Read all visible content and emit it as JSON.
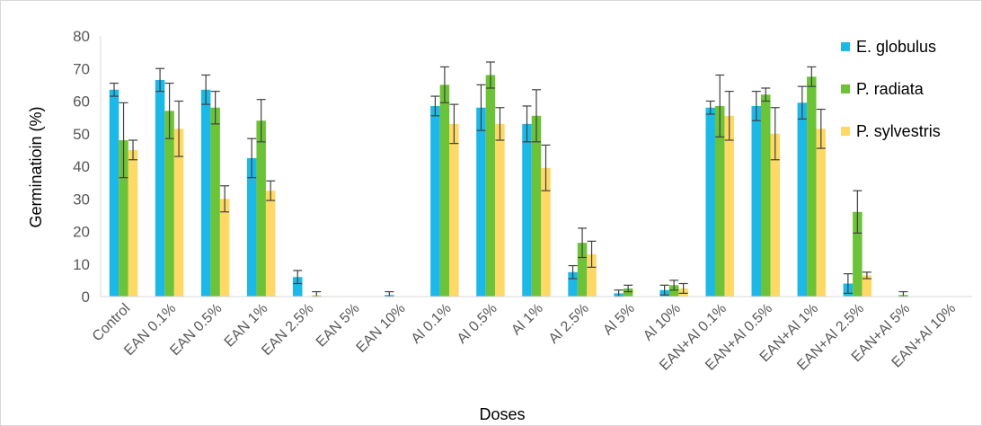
{
  "chart_data": {
    "type": "bar",
    "title": "",
    "xlabel": "Doses",
    "ylabel": "Germinatioin (%)",
    "ylim": [
      0,
      80
    ],
    "yticks": [
      0,
      10,
      20,
      30,
      40,
      50,
      60,
      70,
      80
    ],
    "grid": false,
    "legend_position": "top-right",
    "categories": [
      "Control",
      "EAN 0.1%",
      "EAN 0.5%",
      "EAN 1%",
      "EAN 2.5%",
      "EAN 5%",
      "EAN 10%",
      "Al 0.1%",
      "Al 0.5%",
      "Al 1%",
      "Al 2.5%",
      "Al 5%",
      "Al 10%",
      "EAN+Al 0.1%",
      "EAN+Al 0.5%",
      "EAN+Al 1%",
      "EAN+Al 2.5%",
      "EAN+Al 5%",
      "EAN+Al 10%"
    ],
    "series": [
      {
        "name": "E. globulus",
        "color": "#1cb8e8",
        "values": [
          63.5,
          66.5,
          63.5,
          42.5,
          6,
          0,
          0.5,
          58.5,
          58,
          53,
          7.5,
          1,
          2,
          58,
          58.5,
          59.5,
          4,
          0,
          0
        ],
        "errors": [
          2,
          3.5,
          4.5,
          6,
          2,
          0,
          1,
          3,
          7,
          5.5,
          2,
          1,
          1.5,
          2,
          4.5,
          5,
          3,
          0,
          0
        ]
      },
      {
        "name": "P. radiata",
        "color": "#6cc337",
        "values": [
          48,
          57,
          58,
          54,
          0,
          0,
          0,
          65,
          68,
          55.5,
          16.5,
          2.5,
          3.5,
          58.5,
          62,
          67.5,
          26,
          0.5,
          0
        ],
        "errors": [
          11.5,
          8.5,
          5,
          6.5,
          0,
          0,
          0,
          5.5,
          4,
          8,
          4.5,
          1,
          1.5,
          9.5,
          2,
          3,
          6.5,
          1,
          0
        ]
      },
      {
        "name": "P. sylvestris",
        "color": "#ffd966",
        "values": [
          45,
          51.5,
          30,
          32.5,
          0.5,
          0,
          0,
          53,
          53,
          39.5,
          13,
          0,
          2.5,
          55.5,
          50,
          51.5,
          6.5,
          0,
          0
        ],
        "errors": [
          3,
          8.5,
          4,
          3,
          1,
          0,
          0,
          6,
          5,
          7,
          4,
          0,
          1.5,
          7.5,
          8,
          6,
          1,
          0,
          0
        ]
      }
    ]
  }
}
